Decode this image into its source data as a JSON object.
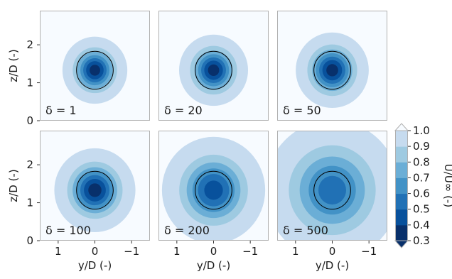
{
  "chart_data": {
    "type": "heatmap",
    "description_colormap": "Blues_r",
    "panels": [
      {
        "label": "δ = 1",
        "delta": 1,
        "deficit_levels": [
          0.35,
          0.4,
          0.45,
          0.5,
          0.55,
          0.6
        ],
        "wake_sigma": 0.32
      },
      {
        "label": "δ = 20",
        "delta": 20,
        "deficit_levels": [
          0.35,
          0.4,
          0.45,
          0.5,
          0.55,
          0.6
        ],
        "wake_sigma": 0.34
      },
      {
        "label": "δ = 50",
        "delta": 50,
        "deficit_levels": [
          0.35,
          0.4,
          0.45,
          0.5,
          0.55,
          0.6
        ],
        "wake_sigma": 0.36
      },
      {
        "label": "δ = 100",
        "delta": 100,
        "deficit_levels": [
          0.35,
          0.4,
          0.45,
          0.5,
          0.55,
          0.6
        ],
        "wake_sigma": 0.4
      },
      {
        "label": "δ = 200",
        "delta": 200,
        "deficit_levels": [
          0.45,
          0.5,
          0.55,
          0.6,
          0.65,
          0.7
        ],
        "wake_sigma": 0.52
      },
      {
        "label": "δ = 500",
        "delta": 500,
        "deficit_levels": [
          0.55,
          0.6,
          0.65,
          0.7,
          0.75,
          0.8
        ],
        "wake_sigma": 0.7
      }
    ],
    "rotor": {
      "center_y": 0,
      "center_z": 1.33,
      "diameter": 1
    },
    "xlim": [
      1.5,
      -1.5
    ],
    "ylim": [
      0,
      2.9
    ],
    "xticks": [
      1,
      0,
      -1
    ],
    "xtick_labels": [
      "1",
      "0",
      "−1"
    ],
    "yticks": [
      0,
      1,
      2
    ],
    "ytick_labels": [
      "0",
      "1",
      "2"
    ],
    "xlabel": "y/D (-)",
    "ylabel": "z/D (-)",
    "colorbar": {
      "label": "U/U∞ (-)",
      "levels": [
        0.3,
        0.4,
        0.5,
        0.6,
        0.7,
        0.8,
        0.9,
        1.0
      ],
      "tick_labels": [
        "0.3",
        "0.4",
        "0.5",
        "0.6",
        "0.7",
        "0.8",
        "0.9",
        "1.0"
      ],
      "colors": [
        "#08306b",
        "#08519c",
        "#2171b5",
        "#4292c6",
        "#6baed6",
        "#9ecae1",
        "#c6dbef",
        "#deebf7"
      ],
      "extend_color_low": "#08306b",
      "extend_color_high": "#f7fbff"
    },
    "grid": false
  }
}
